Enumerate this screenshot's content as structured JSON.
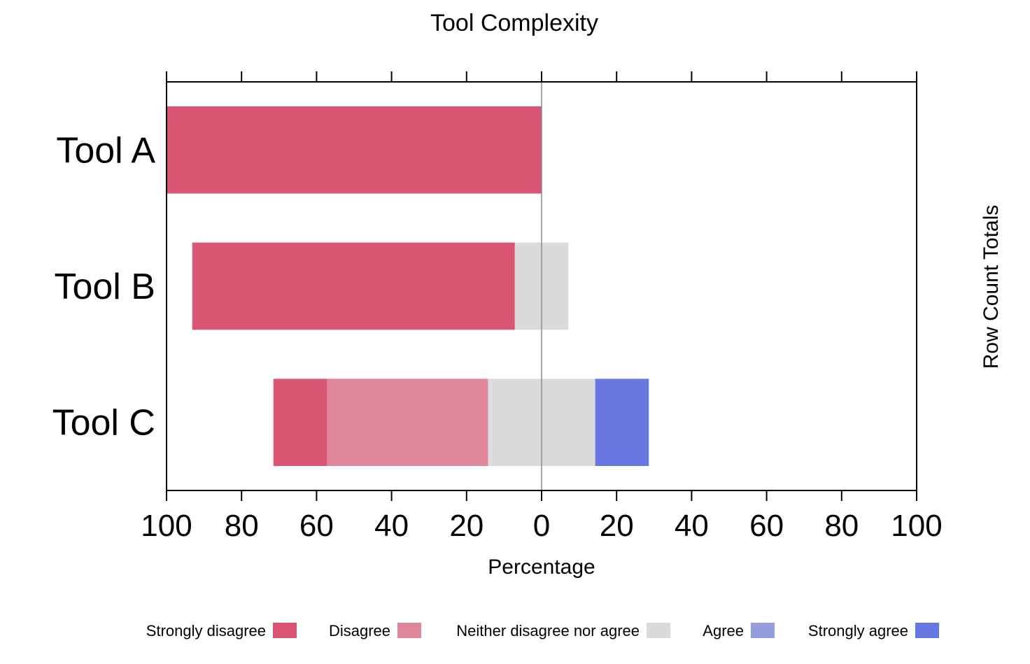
{
  "chart_data": {
    "type": "bar",
    "orientation": "horizontal",
    "stacking": "diverging",
    "title": "Tool Complexity",
    "xlabel": "Percentage",
    "ylabel_right": "Row Count Totals",
    "xlim": [
      -100,
      100
    ],
    "xticks": [
      -100,
      -80,
      -60,
      -40,
      -20,
      0,
      20,
      40,
      60,
      80,
      100
    ],
    "xtick_labels": [
      "100",
      "80",
      "60",
      "40",
      "20",
      "0",
      "20",
      "40",
      "60",
      "80",
      "100"
    ],
    "grid": false,
    "legend_position": "bottom",
    "categories": [
      "Tool A",
      "Tool B",
      "Tool C"
    ],
    "series": [
      {
        "name": "Strongly disagree",
        "color": "#D95573",
        "values": [
          100,
          86,
          14.3
        ]
      },
      {
        "name": "Disagree",
        "color": "#DF8698",
        "values": [
          0,
          0,
          42.9
        ]
      },
      {
        "name": "Neither disagree nor agree",
        "color": "#DBDBDB",
        "values": [
          0,
          14.3,
          28.6
        ]
      },
      {
        "name": "Agree",
        "color": "#959DE1",
        "values": [
          0,
          0,
          0
        ]
      },
      {
        "name": "Strongly agree",
        "color": "#6677E1",
        "values": [
          0,
          0,
          14.3
        ]
      }
    ]
  }
}
